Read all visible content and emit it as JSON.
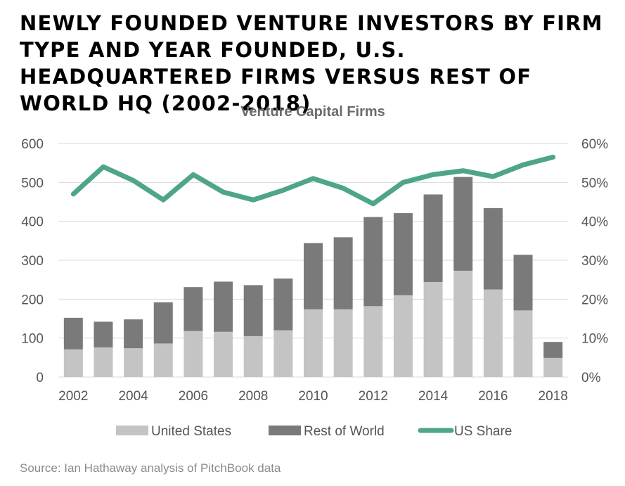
{
  "headline": "NEWLY FOUNDED VENTURE INVESTORS BY FIRM TYPE AND YEAR FOUNDED, U.S. HEADQUARTERED FIRMS VERSUS REST OF WORLD HQ (2002-2018)",
  "source": "Source: Ian Hathaway analysis of PitchBook data",
  "chart_data": {
    "type": "bar",
    "stacked": true,
    "title": "Venture Capital Firms",
    "categories": [
      "2002",
      "2003",
      "2004",
      "2005",
      "2006",
      "2007",
      "2008",
      "2009",
      "2010",
      "2011",
      "2012",
      "2013",
      "2014",
      "2015",
      "2016",
      "2017",
      "2018"
    ],
    "x_tick_labels": [
      "2002",
      "2004",
      "2006",
      "2008",
      "2010",
      "2012",
      "2014",
      "2016",
      "2018"
    ],
    "series": [
      {
        "name": "United States",
        "axis": "left",
        "color": "#c4c4c4",
        "values": [
          71,
          76,
          74,
          86,
          118,
          116,
          105,
          120,
          174,
          174,
          182,
          210,
          244,
          273,
          225,
          171,
          49
        ]
      },
      {
        "name": "Rest of World",
        "axis": "left",
        "color": "#7a7a7a",
        "values": [
          81,
          66,
          74,
          106,
          113,
          129,
          131,
          133,
          170,
          185,
          229,
          211,
          225,
          241,
          209,
          143,
          41
        ]
      },
      {
        "name": "US Share",
        "axis": "right",
        "type": "line",
        "color": "#4fa58a",
        "values": [
          0.47,
          0.54,
          0.505,
          0.455,
          0.52,
          0.475,
          0.455,
          0.48,
          0.51,
          0.485,
          0.445,
          0.5,
          0.52,
          0.53,
          0.515,
          0.545,
          0.565
        ]
      }
    ],
    "y_left": {
      "min": 0,
      "max": 600,
      "ticks": [
        0,
        100,
        200,
        300,
        400,
        500,
        600
      ],
      "tick_labels": [
        "0",
        "100",
        "200",
        "300",
        "400",
        "500",
        "600"
      ]
    },
    "y_right": {
      "min": 0,
      "max": 0.6,
      "ticks": [
        0,
        0.1,
        0.2,
        0.3,
        0.4,
        0.5,
        0.6
      ],
      "tick_labels": [
        "0%",
        "10%",
        "20%",
        "30%",
        "40%",
        "50%",
        "60%"
      ]
    },
    "grid": true,
    "legend_position": "bottom",
    "legend": [
      "United States",
      "Rest of World",
      "US Share"
    ]
  }
}
